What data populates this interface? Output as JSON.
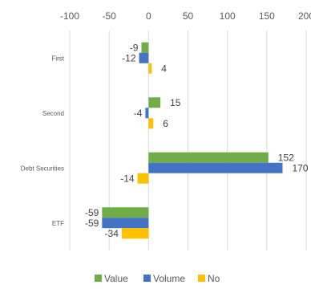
{
  "chart_data": {
    "type": "bar",
    "orientation": "horizontal",
    "categories": [
      "First",
      "Second",
      "Debt Securities",
      "ETF"
    ],
    "series": [
      {
        "name": "Value",
        "color": "#70AD47",
        "values": [
          -9,
          15,
          152,
          -59
        ]
      },
      {
        "name": "Volume",
        "color": "#4472C4",
        "values": [
          -12,
          -4,
          170,
          -59
        ]
      },
      {
        "name": "No",
        "color": "#FFC000",
        "values": [
          4,
          6,
          -14,
          -34
        ]
      }
    ],
    "xlim": [
      -100,
      200
    ],
    "xticks": [
      -100,
      -50,
      0,
      50,
      100,
      150,
      200
    ],
    "grid": true,
    "legend": "bottom",
    "data_labels": true
  }
}
